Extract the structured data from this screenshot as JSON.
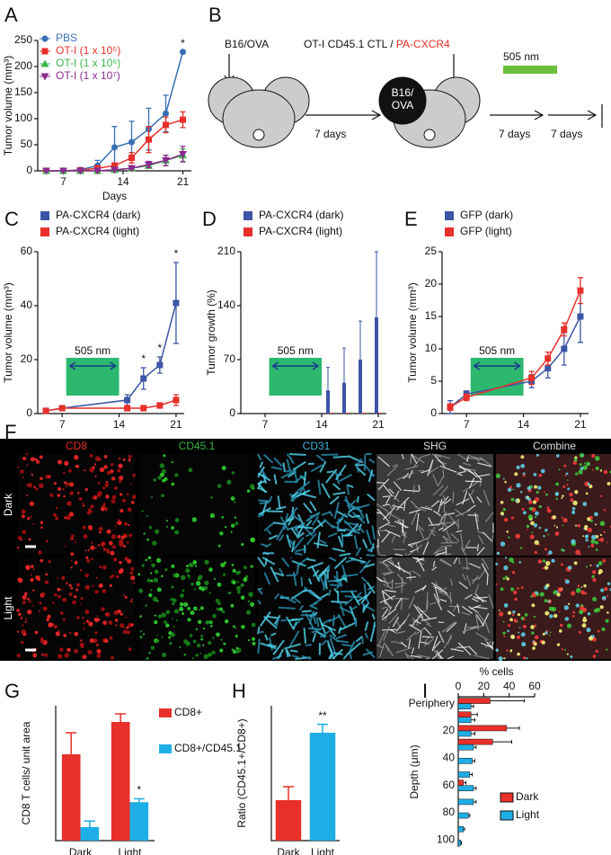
{
  "chart_data": [
    {
      "label": "A",
      "type": "line",
      "xlabel": "Days",
      "ylabel": "Tumor volume (mm³)",
      "legend": "upper left",
      "x": [
        5,
        7,
        9,
        11,
        13,
        15,
        17,
        19,
        21
      ],
      "xlim": [
        4,
        22
      ],
      "xticks": [
        7,
        14,
        21
      ],
      "ylim": [
        0,
        250
      ],
      "yticks": [
        0,
        50,
        100,
        150,
        200,
        250
      ],
      "series": [
        {
          "name": "PBS",
          "color": "#3a6fb6",
          "marker": "circle",
          "values": [
            0,
            0,
            2,
            10,
            45,
            55,
            80,
            110,
            228
          ],
          "errors": [
            0,
            0,
            2,
            10,
            40,
            40,
            40,
            35,
            0
          ]
        },
        {
          "name": "OT-I (1 x 10⁵)",
          "color": "#e8302a",
          "marker": "square",
          "values": [
            0,
            0,
            1,
            5,
            10,
            25,
            60,
            88,
            98
          ],
          "errors": [
            0,
            0,
            1,
            3,
            5,
            10,
            25,
            15,
            15
          ]
        },
        {
          "name": "OT-I (1 x 10⁶)",
          "color": "#3ab54a",
          "marker": "triangle",
          "values": [
            0,
            0,
            0,
            0,
            2,
            5,
            10,
            20,
            30
          ],
          "errors": [
            0,
            0,
            0,
            0,
            1,
            3,
            5,
            10,
            12
          ]
        },
        {
          "name": "OT-I (1 x 10⁷)",
          "color": "#8b2a8e",
          "marker": "triangle-down",
          "values": [
            0,
            0,
            0,
            0,
            2,
            5,
            12,
            20,
            32
          ],
          "errors": [
            0,
            0,
            0,
            0,
            1,
            3,
            6,
            10,
            15
          ]
        }
      ],
      "annotations": [
        {
          "text": "*",
          "x": 21
        }
      ]
    },
    {
      "label": "C",
      "type": "line",
      "ylabel": "Tumor volume (mm³)",
      "legend": "top",
      "x": [
        5,
        7,
        15,
        17,
        19,
        21
      ],
      "xlim": [
        4,
        22
      ],
      "xticks": [
        7,
        14,
        21
      ],
      "ylim": [
        0,
        60
      ],
      "yticks": [
        0,
        20,
        40,
        60
      ],
      "band": {
        "label": "505 nm",
        "from": 7.5,
        "to": 14
      },
      "series": [
        {
          "name": "PA-CXCR4 (dark)",
          "color": "#3d55a5",
          "marker": "square",
          "values": [
            1,
            2,
            5,
            13,
            18,
            41
          ],
          "errors": [
            1,
            0.5,
            2,
            4,
            3,
            15
          ]
        },
        {
          "name": "PA-CXCR4 (light)",
          "color": "#e8302a",
          "marker": "square",
          "values": [
            1,
            2,
            2,
            2,
            3,
            5
          ],
          "errors": [
            0.5,
            0.5,
            1,
            1,
            1,
            2
          ]
        }
      ],
      "annotations": [
        {
          "text": "*",
          "x": 17
        },
        {
          "text": "*",
          "x": 19
        },
        {
          "text": "*",
          "x": 21
        }
      ]
    },
    {
      "label": "D",
      "type": "bar",
      "ylabel": "Tumor growth (%)",
      "legend": "top",
      "x": [
        5,
        7,
        15,
        17,
        19,
        21
      ],
      "xlim": [
        4,
        22
      ],
      "xticks": [
        7,
        14,
        21
      ],
      "ylim": [
        0,
        210
      ],
      "yticks": [
        0,
        70,
        140,
        210
      ],
      "band": {
        "label": "505 nm",
        "from": 7.5,
        "to": 14
      },
      "series": [
        {
          "name": "PA-CXCR4 (dark)",
          "color": "#3d55a5",
          "values": [
            0,
            0,
            30,
            40,
            70,
            125
          ],
          "errors": [
            0,
            0,
            30,
            45,
            50,
            85
          ]
        },
        {
          "name": "PA-CXCR4 (light)",
          "color": "#e8302a",
          "values": [
            0,
            0,
            1,
            1,
            1,
            1
          ],
          "errors": [
            0,
            0,
            0,
            0,
            0,
            0
          ]
        }
      ]
    },
    {
      "label": "E",
      "type": "line",
      "ylabel": "Tumor volume (mm³)",
      "legend": "top",
      "x": [
        5,
        7,
        15,
        17,
        19,
        21
      ],
      "xlim": [
        4,
        22
      ],
      "xticks": [
        7,
        14,
        21
      ],
      "ylim": [
        0,
        25
      ],
      "yticks": [
        0,
        5,
        10,
        15,
        20,
        25
      ],
      "band": {
        "label": "505 nm",
        "from": 7.5,
        "to": 14
      },
      "series": [
        {
          "name": "GFP (dark)",
          "color": "#3d55a5",
          "marker": "square",
          "values": [
            1,
            3,
            5,
            7,
            10,
            15
          ],
          "errors": [
            1,
            0.5,
            1,
            1.5,
            2.5,
            4
          ]
        },
        {
          "name": "GFP (light)",
          "color": "#e8302a",
          "marker": "square",
          "values": [
            1,
            2.5,
            5.5,
            8.5,
            13,
            19
          ],
          "errors": [
            0.5,
            0.5,
            1,
            1,
            1,
            2
          ]
        }
      ]
    },
    {
      "label": "G",
      "type": "bar",
      "ylabel": "CD8 T cells/ unit area",
      "legend": "right",
      "categories": [
        "Dark",
        "Light"
      ],
      "ylim": [
        0,
        200
      ],
      "series": [
        {
          "name": "CD8+",
          "color": "#e8302a",
          "values": [
            128,
            176
          ],
          "errors": [
            32,
            12
          ]
        },
        {
          "name": "CD8+/CD45.1",
          "color": "#1eaee6",
          "values": [
            20,
            57
          ],
          "errors": [
            9,
            5
          ]
        }
      ],
      "annotations": [
        {
          "text": "*",
          "series": 1,
          "index": 1
        }
      ]
    },
    {
      "label": "H",
      "type": "bar",
      "ylabel": "Ratio (CD45.1+/CD8+)",
      "categories": [
        "Dark",
        "Light"
      ],
      "ylim": [
        0,
        0.4
      ],
      "values": [
        0.12,
        0.32
      ],
      "errors": [
        0.04,
        0.025
      ],
      "colors": [
        "#e8302a",
        "#1eaee6"
      ],
      "annotations": [
        {
          "text": "**",
          "index": 1
        }
      ]
    },
    {
      "label": "I",
      "type": "barh",
      "xlabel": "% cells",
      "ylabel": "Depth (μm)",
      "legend": "lower right",
      "categories": [
        "Periphery",
        null,
        "20",
        null,
        "40",
        null,
        "60",
        null,
        "80",
        null,
        "100"
      ],
      "xlim": [
        0,
        60
      ],
      "xticks": [
        0,
        20,
        40,
        60
      ],
      "series": [
        {
          "name": "Dark",
          "color": "#e8302a",
          "values": [
            25,
            10,
            38,
            27,
            0,
            0,
            4,
            0,
            0,
            0,
            0
          ],
          "errors": [
            27,
            5,
            10,
            15,
            0,
            0,
            2,
            0,
            0,
            0,
            0
          ]
        },
        {
          "name": "Light",
          "color": "#1eaee6",
          "values": [
            10,
            10,
            10,
            12,
            11,
            9,
            12,
            12,
            8,
            4,
            2
          ],
          "errors": [
            2,
            3,
            3,
            2,
            2,
            2,
            2,
            2,
            1,
            1,
            0.5
          ]
        }
      ]
    }
  ],
  "diagram": {
    "label": "B",
    "tumor": "B16/OVA",
    "cells": "OT-I CD45.1 CTL / ",
    "construct": "PA-CXCR4",
    "wait": "7 days",
    "tumor_mark": "B16/",
    "tumor_mark2": "OVA",
    "light": "505 nm",
    "light_days": "7 days",
    "rest_days": "7 days"
  },
  "images": {
    "label": "F",
    "columns": [
      "CD8",
      "CD45.1",
      "CD31",
      "SHG",
      "Combine"
    ],
    "column_colors": [
      "#e8302a",
      "#3ab54a",
      "#3fb6d8",
      "#dddddd",
      "#dddddd"
    ],
    "rows": [
      "Dark",
      "Light"
    ]
  }
}
